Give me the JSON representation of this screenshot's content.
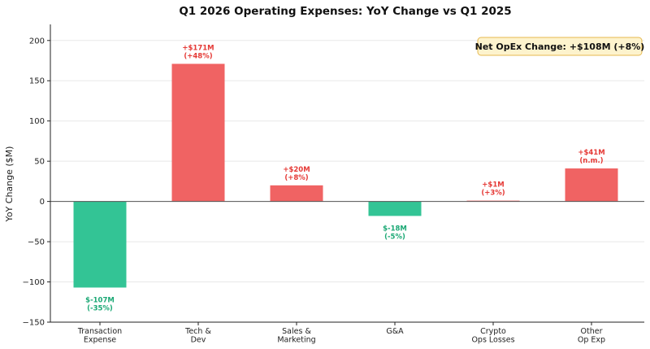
{
  "chart_data": {
    "type": "bar",
    "title": "Q1 2026 Operating Expenses: YoY Change vs Q1 2025",
    "xlabel": "",
    "ylabel": "YoY Change ($M)",
    "ylim": [
      -150,
      220
    ],
    "yticks": [
      -150,
      -100,
      -50,
      0,
      50,
      100,
      150,
      200
    ],
    "ytick_labels": [
      "−150",
      "−100",
      "−50",
      "0",
      "50",
      "100",
      "150",
      "200"
    ],
    "grid": true,
    "categories": [
      [
        "Transaction",
        "Expense"
      ],
      [
        "Tech &",
        "Dev"
      ],
      [
        "Sales &",
        "Marketing"
      ],
      [
        "G&A"
      ],
      [
        "Crypto",
        "Ops Losses"
      ],
      [
        "Other",
        "Op Exp"
      ]
    ],
    "values": [
      -107,
      171,
      20,
      -18,
      1,
      41
    ],
    "data_labels": [
      [
        "$-107M",
        "(-35%)"
      ],
      [
        "+$171M",
        "(+48%)"
      ],
      [
        "+$20M",
        "(+8%)"
      ],
      [
        "$-18M",
        "(-5%)"
      ],
      [
        "+$1M",
        "(+3%)"
      ],
      [
        "+$41M",
        "(n.m.)"
      ]
    ],
    "annotation": "Net OpEx Change: +$108M (+8%)",
    "colors": {
      "increase": "#f06363",
      "decrease": "#33c495",
      "increase_text": "#e53935",
      "decrease_text": "#1aa874",
      "note_bg": "#fdf3cd",
      "note_border": "#e6b84f"
    }
  }
}
